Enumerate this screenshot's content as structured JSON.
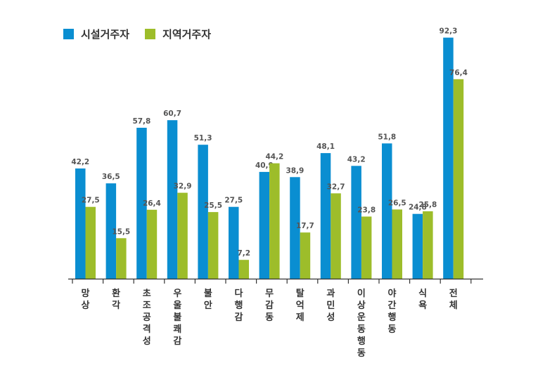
{
  "colors": {
    "series1": "#0a8ed1",
    "series2": "#9dbd2a",
    "axis": "#333333",
    "label": "#555555"
  },
  "chart_data": {
    "type": "bar",
    "title": "",
    "xlabel": "",
    "ylabel": "",
    "ylim": [
      0,
      100
    ],
    "grid": false,
    "legend_position": "top-left",
    "categories": [
      "망상",
      "환각",
      "초조공격성",
      "우울불쾌감",
      "불안",
      "다행감",
      "무감동",
      "탈억제",
      "과민성",
      "이상운동행동",
      "야간행동",
      "식욕",
      "전체"
    ],
    "series": [
      {
        "name": "시설거주자",
        "values": [
          "42,2",
          "36,5",
          "57,8",
          "60,7",
          "51,3",
          "27,5",
          "40,9",
          "38,9",
          "48,1",
          "43,2",
          "51,8",
          "24,8",
          "92,3"
        ]
      },
      {
        "name": "지역거주자",
        "values": [
          "27,5",
          "15,5",
          "26,4",
          "32,9",
          "25,5",
          "7,2",
          "44,2",
          "17,7",
          "32,7",
          "23,8",
          "26,5",
          "25,8",
          "76,4"
        ]
      }
    ]
  }
}
